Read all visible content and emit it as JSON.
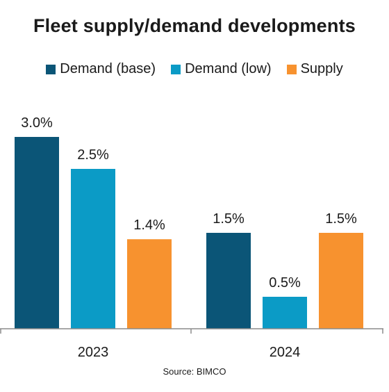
{
  "chart_data": {
    "type": "bar",
    "title": "Fleet supply/demand developments",
    "categories": [
      "2023",
      "2024"
    ],
    "series": [
      {
        "name": "Demand (base)",
        "values": [
          3.0,
          1.5
        ],
        "labels": [
          "3.0%",
          "1.5%"
        ],
        "color": "#0b5577"
      },
      {
        "name": "Demand (low)",
        "values": [
          2.5,
          0.5
        ],
        "labels": [
          "2.5%",
          "0.5%"
        ],
        "color": "#0b9bc6"
      },
      {
        "name": "Supply",
        "values": [
          1.4,
          1.5
        ],
        "labels": [
          "1.4%",
          "1.5%"
        ],
        "color": "#f7922f"
      }
    ],
    "ylim": [
      0,
      3.0
    ],
    "grid": false,
    "legend_position": "top",
    "source": "Source: BIMCO"
  }
}
